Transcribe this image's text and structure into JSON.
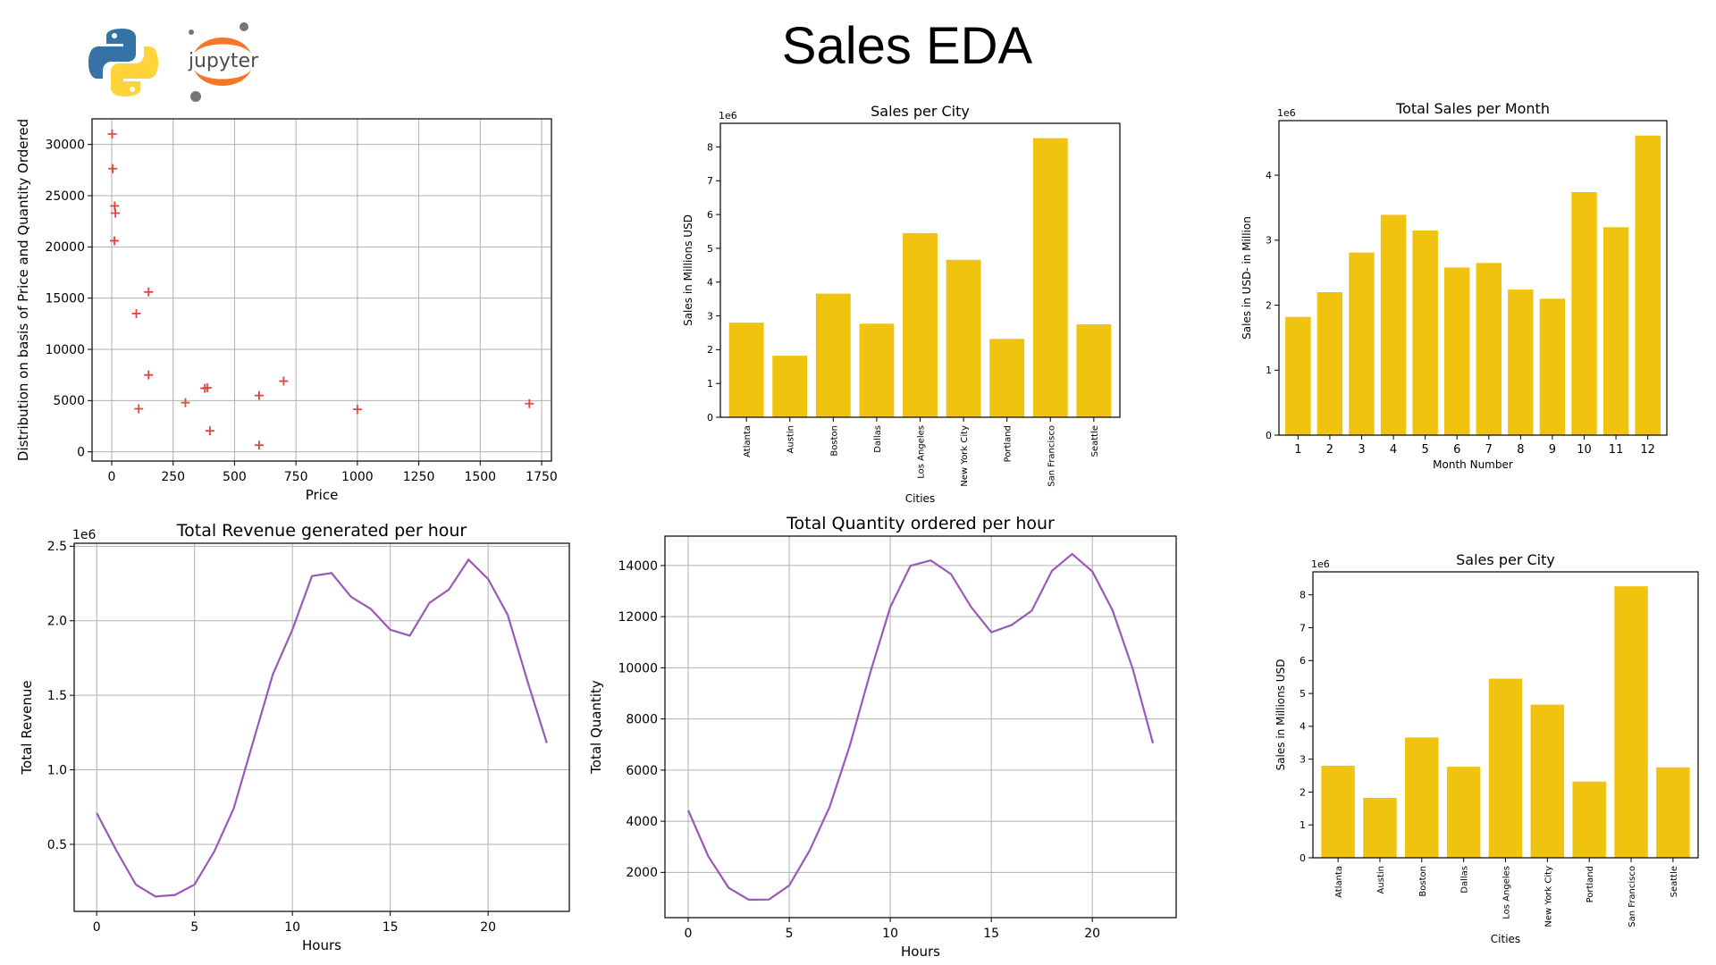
{
  "page": {
    "title": "Sales EDA"
  },
  "logos": {
    "python": "python-logo",
    "jupyter_text": "jupyter"
  },
  "colors": {
    "bar": "#f0c30f",
    "line": "#9b59b6",
    "marker": "#e0473c"
  },
  "chart_data": [
    {
      "id": "scatter",
      "type": "scatter",
      "title": "",
      "xlabel": "Price",
      "ylabel": "Distribution on basis of Price  and Quantity Ordered",
      "xlim": [
        -80,
        1790
      ],
      "ylim": [
        -900,
        32500
      ],
      "xticks": [
        0,
        250,
        500,
        750,
        1000,
        1250,
        1500,
        1750
      ],
      "yticks": [
        0,
        5000,
        10000,
        15000,
        20000,
        25000,
        30000
      ],
      "grid": true,
      "marker": "+",
      "points": [
        [
          2,
          31017
        ],
        [
          4,
          27635
        ],
        [
          12,
          24000
        ],
        [
          15,
          23300
        ],
        [
          11,
          20600
        ],
        [
          150,
          15600
        ],
        [
          100,
          13500
        ],
        [
          150,
          7500
        ],
        [
          110,
          4200
        ],
        [
          300,
          4800
        ],
        [
          379,
          6200
        ],
        [
          389,
          6250
        ],
        [
          400,
          2050
        ],
        [
          600,
          5500
        ],
        [
          600,
          650
        ],
        [
          700,
          6900
        ],
        [
          1000,
          4150
        ],
        [
          1700,
          4700
        ]
      ]
    },
    {
      "id": "city-top",
      "type": "bar",
      "title": "Sales per City",
      "xlabel": "Cities",
      "ylabel": "Sales in Millions USD",
      "offset_label": "1e6",
      "categories": [
        "Atlanta",
        "Austin",
        "Boston",
        "Dallas",
        "Los Angeles",
        "New York City",
        "Portland",
        "San Francisco",
        "Seattle"
      ],
      "values": [
        2.8,
        1.82,
        3.66,
        2.77,
        5.45,
        4.66,
        2.32,
        8.26,
        2.75
      ],
      "ylim": [
        0,
        8.7
      ],
      "yticks": [
        0,
        1,
        2,
        3,
        4,
        5,
        6,
        7,
        8
      ],
      "grid": false
    },
    {
      "id": "month",
      "type": "bar",
      "title": "Total Sales per Month",
      "xlabel": "Month Number",
      "ylabel": "Sales in USD- in Million",
      "offset_label": "1e6",
      "categories": [
        "1",
        "2",
        "3",
        "4",
        "5",
        "6",
        "7",
        "8",
        "9",
        "10",
        "11",
        "12"
      ],
      "values": [
        1.82,
        2.2,
        2.81,
        3.39,
        3.15,
        2.58,
        2.65,
        2.24,
        2.1,
        3.74,
        3.2,
        4.61
      ],
      "ylim": [
        0,
        4.84
      ],
      "yticks": [
        0,
        1,
        2,
        3,
        4
      ],
      "grid": false
    },
    {
      "id": "revenue-hour",
      "type": "line",
      "title": "Total Revenue generated per hour",
      "xlabel": "Hours",
      "ylabel": "Total Revenue",
      "offset_label": "1e6",
      "x": [
        0,
        1,
        2,
        3,
        4,
        5,
        6,
        7,
        8,
        9,
        10,
        11,
        12,
        13,
        14,
        15,
        16,
        17,
        18,
        19,
        20,
        21,
        22,
        23
      ],
      "values": [
        0.71,
        0.46,
        0.23,
        0.15,
        0.16,
        0.23,
        0.45,
        0.74,
        1.19,
        1.64,
        1.94,
        2.3,
        2.32,
        2.16,
        2.08,
        1.94,
        1.9,
        2.12,
        2.21,
        2.41,
        2.28,
        2.04,
        1.6,
        1.18
      ],
      "xlim": [
        -1.15,
        24.15
      ],
      "ylim": [
        0.05,
        2.52
      ],
      "xticks": [
        0,
        5,
        10,
        15,
        20
      ],
      "yticks": [
        0.5,
        1.0,
        1.5,
        2.0,
        2.5
      ],
      "ytick_labels": [
        "0.5",
        "1.0",
        "1.5",
        "2.0",
        "2.5"
      ],
      "grid": true
    },
    {
      "id": "quantity-hour",
      "type": "line",
      "title": "Total Quantity ordered per hour",
      "xlabel": "Hours",
      "ylabel": "Total Quantity",
      "x": [
        0,
        1,
        2,
        3,
        4,
        5,
        6,
        7,
        8,
        9,
        10,
        11,
        12,
        13,
        14,
        15,
        16,
        17,
        18,
        19,
        20,
        21,
        22,
        23
      ],
      "values": [
        4430,
        2620,
        1400,
        930,
        940,
        1490,
        2840,
        4560,
        6960,
        9780,
        12370,
        13990,
        14200,
        13670,
        12380,
        11390,
        11670,
        12230,
        13790,
        14450,
        13770,
        12250,
        9960,
        7050
      ],
      "xlim": [
        -1.15,
        24.15
      ],
      "ylim": [
        230,
        15150
      ],
      "xticks": [
        0,
        5,
        10,
        15,
        20
      ],
      "yticks": [
        2000,
        4000,
        6000,
        8000,
        10000,
        12000,
        14000
      ],
      "grid": true
    },
    {
      "id": "city-bottom",
      "type": "bar",
      "title": "Sales per City",
      "xlabel": "Cities",
      "ylabel": "Sales in Millions USD",
      "offset_label": "1e6",
      "categories": [
        "Atlanta",
        "Austin",
        "Boston",
        "Dallas",
        "Los Angeles",
        "New York City",
        "Portland",
        "San Francisco",
        "Seattle"
      ],
      "values": [
        2.8,
        1.82,
        3.66,
        2.77,
        5.45,
        4.66,
        2.32,
        8.26,
        2.75
      ],
      "ylim": [
        0,
        8.7
      ],
      "yticks": [
        0,
        1,
        2,
        3,
        4,
        5,
        6,
        7,
        8
      ],
      "grid": false
    }
  ]
}
